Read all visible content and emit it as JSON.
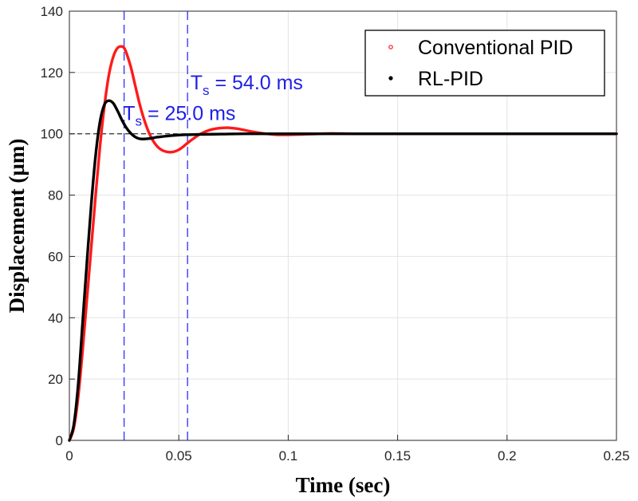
{
  "chart_data": {
    "type": "line",
    "title": "",
    "xlabel": "Time (sec)",
    "ylabel": "Displacement (µm)",
    "xlim": [
      0,
      0.25
    ],
    "ylim": [
      0,
      140
    ],
    "xticks": [
      0,
      0.05,
      0.1,
      0.15,
      0.2,
      0.25
    ],
    "xtick_labels": [
      "0",
      "0.05",
      "0.1",
      "0.15",
      "0.2",
      "0.25"
    ],
    "yticks": [
      0,
      20,
      40,
      60,
      80,
      100,
      120,
      140
    ],
    "ytick_labels": [
      "0",
      "20",
      "40",
      "60",
      "80",
      "100",
      "120",
      "140"
    ],
    "grid": true,
    "legend_position": "top-right",
    "reference_line": {
      "y": 100,
      "style": "dashed",
      "color": "#000000"
    },
    "series": [
      {
        "name": "Conventional PID",
        "color": "#ff1a1a",
        "x": [
          0,
          0.002,
          0.004,
          0.006,
          0.008,
          0.01,
          0.012,
          0.014,
          0.016,
          0.018,
          0.02,
          0.022,
          0.024,
          0.025,
          0.026,
          0.028,
          0.03,
          0.032,
          0.034,
          0.036,
          0.038,
          0.04,
          0.042,
          0.044,
          0.046,
          0.048,
          0.05,
          0.052,
          0.054,
          0.057,
          0.06,
          0.064,
          0.068,
          0.072,
          0.075,
          0.078,
          0.082,
          0.086,
          0.09,
          0.095,
          0.1,
          0.11,
          0.12,
          0.13,
          0.15,
          0.2,
          0.25
        ],
        "values": [
          0,
          4,
          14,
          29,
          46,
          63,
          80,
          96,
          109,
          119,
          125,
          128,
          128.5,
          128,
          126.5,
          122,
          116,
          110,
          105,
          101,
          98,
          96,
          94.8,
          94.2,
          94,
          94.2,
          94.8,
          95.8,
          97,
          98.6,
          100,
          101.2,
          101.8,
          102,
          101.8,
          101.5,
          100.9,
          100.4,
          100,
          99.7,
          99.7,
          99.9,
          100.1,
          100,
          100,
          100,
          100
        ]
      },
      {
        "name": "RL-PID",
        "color": "#000000",
        "x": [
          0,
          0.002,
          0.004,
          0.006,
          0.008,
          0.01,
          0.012,
          0.014,
          0.016,
          0.018,
          0.02,
          0.022,
          0.024,
          0.026,
          0.028,
          0.03,
          0.032,
          0.034,
          0.036,
          0.038,
          0.04,
          0.045,
          0.05,
          0.06,
          0.07,
          0.08,
          0.1,
          0.15,
          0.2,
          0.25
        ],
        "values": [
          0,
          5,
          18,
          38,
          58,
          77,
          93,
          104,
          109.5,
          110.8,
          110,
          107.5,
          104.5,
          102,
          100.2,
          99,
          98.4,
          98.3,
          98.4,
          98.6,
          98.9,
          99.3,
          99.6,
          99.8,
          99.9,
          100,
          100,
          100,
          100,
          100
        ]
      }
    ],
    "vlines": [
      {
        "x": 0.025,
        "color": "#3a3aff",
        "style": "dashed"
      },
      {
        "x": 0.054,
        "color": "#3a3aff",
        "style": "dashed"
      }
    ],
    "annotations": [
      {
        "main": "T",
        "sub": "s",
        "rest": " = 54.0 ms",
        "x": 0.0553,
        "y": 114.5
      },
      {
        "main": "T",
        "sub": "s",
        "rest": " = 25.0 ms",
        "x": 0.0245,
        "y": 104.5
      }
    ]
  }
}
